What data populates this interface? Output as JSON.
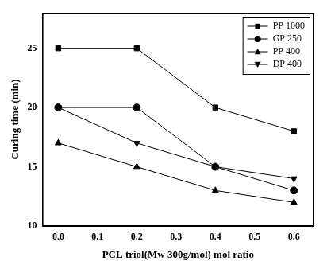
{
  "chart_data": {
    "type": "line",
    "x_label": "PCL triol(Mw 300g/mol) mol ratio",
    "y_label": "Curing time (min)",
    "x": [
      0,
      0.2,
      0.4,
      0.6
    ],
    "series": [
      {
        "name": "PP 1000",
        "color": "#000000",
        "marker": "square",
        "values": [
          25,
          25,
          20,
          18
        ]
      },
      {
        "name": "GP 250",
        "color": "#000000",
        "marker": "circle",
        "values": [
          20,
          20,
          15,
          13
        ]
      },
      {
        "name": "PP 400",
        "color": "#000000",
        "marker": "triangle_up",
        "values": [
          17,
          15,
          13,
          12
        ]
      },
      {
        "name": "DP 400",
        "color": "#000000",
        "marker": "triangle_down",
        "values": [
          20,
          17,
          15,
          14
        ]
      }
    ],
    "xlim": [
      -0.04,
      0.65
    ],
    "xticks": [
      {
        "value": 0,
        "label": "0.0"
      },
      {
        "value": 0.1,
        "label": "0.1"
      },
      {
        "value": 0.2,
        "label": "0.2"
      },
      {
        "value": 0.3,
        "label": "0.3"
      },
      {
        "value": 0.4,
        "label": "0.4"
      },
      {
        "value": 0.5,
        "label": "0.5"
      },
      {
        "value": 0.6,
        "label": "0.6"
      }
    ],
    "ylim": [
      10,
      28
    ],
    "yticks": [
      10,
      15,
      20,
      25
    ],
    "grid": false,
    "legend": "top-right"
  }
}
